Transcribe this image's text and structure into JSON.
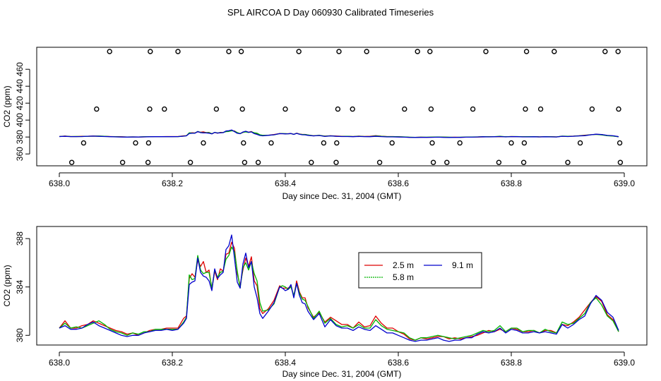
{
  "title": "SPL AIRCOA D  Day 060930  Calibrated Timeseries",
  "colors": {
    "s25": "#dd0000",
    "s58": "#00b400",
    "s91": "#0000cc",
    "frame": "#000000"
  },
  "chart_data": [
    {
      "type": "scatter+line",
      "xlabel": "Day since Dec. 31, 2004 (GMT)",
      "ylabel": "CO2 (ppm)",
      "xlim": [
        637.96,
        639.04
      ],
      "ylim": [
        346,
        486
      ],
      "xticks": [
        638.0,
        638.2,
        638.4,
        638.6,
        638.8,
        639.0
      ],
      "xtick_labels": [
        "638.0",
        "638.2",
        "638.4",
        "638.6",
        "638.8",
        "639.0"
      ],
      "yticks": [
        360,
        380,
        400,
        420,
        440,
        460
      ],
      "ytick_labels": [
        "360",
        "380",
        "400",
        "420",
        "440",
        "460"
      ],
      "calibration_points": [
        {
          "x": 638.022,
          "y": 350
        },
        {
          "x": 638.043,
          "y": 373
        },
        {
          "x": 638.066,
          "y": 413
        },
        {
          "x": 638.089,
          "y": 481
        },
        {
          "x": 638.112,
          "y": 350
        },
        {
          "x": 638.135,
          "y": 373
        },
        {
          "x": 638.157,
          "y": 350
        },
        {
          "x": 638.158,
          "y": 373
        },
        {
          "x": 638.16,
          "y": 413
        },
        {
          "x": 638.161,
          "y": 481
        },
        {
          "x": 638.186,
          "y": 413
        },
        {
          "x": 638.21,
          "y": 481
        },
        {
          "x": 638.232,
          "y": 350
        },
        {
          "x": 638.255,
          "y": 373
        },
        {
          "x": 638.278,
          "y": 413
        },
        {
          "x": 638.3,
          "y": 481
        },
        {
          "x": 638.322,
          "y": 481
        },
        {
          "x": 638.324,
          "y": 413
        },
        {
          "x": 638.326,
          "y": 373
        },
        {
          "x": 638.328,
          "y": 350
        },
        {
          "x": 638.352,
          "y": 350
        },
        {
          "x": 638.375,
          "y": 373
        },
        {
          "x": 638.4,
          "y": 413
        },
        {
          "x": 638.424,
          "y": 481
        },
        {
          "x": 638.446,
          "y": 350
        },
        {
          "x": 638.468,
          "y": 373
        },
        {
          "x": 638.49,
          "y": 350
        },
        {
          "x": 638.491,
          "y": 373
        },
        {
          "x": 638.493,
          "y": 413
        },
        {
          "x": 638.495,
          "y": 481
        },
        {
          "x": 638.519,
          "y": 413
        },
        {
          "x": 638.544,
          "y": 481
        },
        {
          "x": 638.567,
          "y": 350
        },
        {
          "x": 638.589,
          "y": 373
        },
        {
          "x": 638.611,
          "y": 413
        },
        {
          "x": 638.634,
          "y": 481
        },
        {
          "x": 638.656,
          "y": 481
        },
        {
          "x": 638.658,
          "y": 413
        },
        {
          "x": 638.66,
          "y": 373
        },
        {
          "x": 638.662,
          "y": 350
        },
        {
          "x": 638.686,
          "y": 350
        },
        {
          "x": 638.709,
          "y": 373
        },
        {
          "x": 638.732,
          "y": 413
        },
        {
          "x": 638.755,
          "y": 481
        },
        {
          "x": 638.778,
          "y": 350
        },
        {
          "x": 638.8,
          "y": 373
        },
        {
          "x": 638.822,
          "y": 350
        },
        {
          "x": 638.823,
          "y": 373
        },
        {
          "x": 638.825,
          "y": 413
        },
        {
          "x": 638.827,
          "y": 481
        },
        {
          "x": 638.852,
          "y": 413
        },
        {
          "x": 638.876,
          "y": 481
        },
        {
          "x": 638.9,
          "y": 350
        },
        {
          "x": 638.922,
          "y": 373
        },
        {
          "x": 638.943,
          "y": 413
        },
        {
          "x": 638.966,
          "y": 481
        },
        {
          "x": 638.989,
          "y": 481
        },
        {
          "x": 638.99,
          "y": 413
        },
        {
          "x": 638.992,
          "y": 373
        },
        {
          "x": 638.993,
          "y": 350
        }
      ]
    },
    {
      "type": "line",
      "xlabel": "Day since Dec. 31, 2004 (GMT)",
      "ylabel": "CO2 (ppm)",
      "xlim": [
        637.96,
        639.04
      ],
      "ylim": [
        379.2,
        389.0
      ],
      "xticks": [
        638.0,
        638.2,
        638.4,
        638.6,
        638.8,
        639.0
      ],
      "xtick_labels": [
        "638.0",
        "638.2",
        "638.4",
        "638.6",
        "638.8",
        "639.0"
      ],
      "yticks": [
        380,
        384,
        388
      ],
      "ytick_labels": [
        "380",
        "384",
        "388"
      ],
      "legend": [
        "2.5 m",
        "9.1 m",
        "5.8 m"
      ],
      "x": [
        638.0,
        638.01,
        638.02,
        638.03,
        638.04,
        638.05,
        638.06,
        638.07,
        638.08,
        638.09,
        638.1,
        638.11,
        638.12,
        638.13,
        638.14,
        638.15,
        638.16,
        638.17,
        638.18,
        638.19,
        638.2,
        638.21,
        638.22,
        638.225,
        638.23,
        638.235,
        638.24,
        638.245,
        638.25,
        638.255,
        638.26,
        638.265,
        638.27,
        638.275,
        638.28,
        638.285,
        638.29,
        638.295,
        638.3,
        638.305,
        638.31,
        638.315,
        638.32,
        638.325,
        638.33,
        638.335,
        638.34,
        638.345,
        638.35,
        638.355,
        638.36,
        638.37,
        638.38,
        638.39,
        638.395,
        638.4,
        638.405,
        638.41,
        638.415,
        638.42,
        638.425,
        638.43,
        638.435,
        638.44,
        638.45,
        638.46,
        638.47,
        638.48,
        638.49,
        638.5,
        638.51,
        638.52,
        638.53,
        638.54,
        638.55,
        638.56,
        638.57,
        638.58,
        638.59,
        638.6,
        638.61,
        638.62,
        638.63,
        638.64,
        638.65,
        638.66,
        638.67,
        638.68,
        638.69,
        638.7,
        638.71,
        638.72,
        638.73,
        638.74,
        638.75,
        638.76,
        638.77,
        638.78,
        638.79,
        638.8,
        638.81,
        638.82,
        638.83,
        638.84,
        638.85,
        638.86,
        638.87,
        638.88,
        638.89,
        638.9,
        638.91,
        638.92,
        638.93,
        638.94,
        638.95,
        638.96,
        638.97,
        638.98,
        638.99
      ],
      "series": [
        {
          "name": "2.5 m",
          "values": [
            380.6,
            381.2,
            380.6,
            380.6,
            380.8,
            380.9,
            381.2,
            381.0,
            380.8,
            380.6,
            380.4,
            380.3,
            380.1,
            380.2,
            380.0,
            380.2,
            380.4,
            380.5,
            380.5,
            380.6,
            380.6,
            380.6,
            381.4,
            381.6,
            384.7,
            385.1,
            384.8,
            386.2,
            385.7,
            386.1,
            385.2,
            385.4,
            383.8,
            385.3,
            384.6,
            385.5,
            385.3,
            386.7,
            386.8,
            387.7,
            387.2,
            385.1,
            384.1,
            385.4,
            386.4,
            385.7,
            386.5,
            384.5,
            384.1,
            382.2,
            381.8,
            382.2,
            382.9,
            384.1,
            383.9,
            383.9,
            383.9,
            384.1,
            383.2,
            384.5,
            383.6,
            383.1,
            383.1,
            382.3,
            381.5,
            381.9,
            381.1,
            381.5,
            381.2,
            380.9,
            380.9,
            380.6,
            381.1,
            380.7,
            380.8,
            381.6,
            381.0,
            380.6,
            380.6,
            380.3,
            380.1,
            379.7,
            379.6,
            379.8,
            379.7,
            379.8,
            379.9,
            379.9,
            379.7,
            379.8,
            379.7,
            379.8,
            379.9,
            380.0,
            380.2,
            380.4,
            380.3,
            380.5,
            380.3,
            380.6,
            380.5,
            380.3,
            380.3,
            380.4,
            380.2,
            380.4,
            380.4,
            380.2,
            380.9,
            380.8,
            381.1,
            381.5,
            382.1,
            382.7,
            383.2,
            382.8,
            381.7,
            381.3,
            380.3
          ]
        },
        {
          "name": "5.8 m",
          "values": [
            380.6,
            381.0,
            380.6,
            380.7,
            380.6,
            380.8,
            381.0,
            381.2,
            380.9,
            380.5,
            380.3,
            380.2,
            380.0,
            380.2,
            380.1,
            380.3,
            380.3,
            380.5,
            380.5,
            380.5,
            380.5,
            380.5,
            381.1,
            381.5,
            385.0,
            384.6,
            384.7,
            386.6,
            385.4,
            385.1,
            385.2,
            385.2,
            383.9,
            385.4,
            384.8,
            385.2,
            385.3,
            386.3,
            386.6,
            387.3,
            386.9,
            385.3,
            383.9,
            385.6,
            386.0,
            385.4,
            386.1,
            385.1,
            384.5,
            382.7,
            382.0,
            382.1,
            382.6,
            384.0,
            384.1,
            384.0,
            383.8,
            384.0,
            383.3,
            384.3,
            383.5,
            383.0,
            382.9,
            382.4,
            381.4,
            382.0,
            381.0,
            381.4,
            380.9,
            380.7,
            380.8,
            380.6,
            380.9,
            380.6,
            380.6,
            381.3,
            380.8,
            380.5,
            380.4,
            380.3,
            380.2,
            379.8,
            379.6,
            379.8,
            379.8,
            379.9,
            380.0,
            379.9,
            379.8,
            379.7,
            379.8,
            379.9,
            380.0,
            380.2,
            380.4,
            380.3,
            380.4,
            380.8,
            380.3,
            380.6,
            380.6,
            380.3,
            380.4,
            380.4,
            380.2,
            380.5,
            380.3,
            380.2,
            381.1,
            380.9,
            381.0,
            381.4,
            381.8,
            382.7,
            383.1,
            382.5,
            381.6,
            381.2,
            380.3
          ]
        },
        {
          "name": "9.1 m",
          "values": [
            380.6,
            380.8,
            380.5,
            380.5,
            380.6,
            380.9,
            381.1,
            380.8,
            380.6,
            380.4,
            380.2,
            380.0,
            379.9,
            380.0,
            380.0,
            380.2,
            380.3,
            380.4,
            380.4,
            380.5,
            380.4,
            380.5,
            381.0,
            381.4,
            384.2,
            384.4,
            384.5,
            386.4,
            385.2,
            384.9,
            384.8,
            384.5,
            383.7,
            385.5,
            384.7,
            385.0,
            385.2,
            387.1,
            387.4,
            388.3,
            386.4,
            384.4,
            383.9,
            385.9,
            386.8,
            385.6,
            386.1,
            384.0,
            383.1,
            381.8,
            381.4,
            382.0,
            382.7,
            384.0,
            383.9,
            383.7,
            383.8,
            384.2,
            383.1,
            384.3,
            383.3,
            382.7,
            382.6,
            382.0,
            381.3,
            381.8,
            380.7,
            381.3,
            380.8,
            380.6,
            380.6,
            380.4,
            380.7,
            380.5,
            380.4,
            380.8,
            380.5,
            380.2,
            380.2,
            380.0,
            379.8,
            379.6,
            379.5,
            379.6,
            379.6,
            379.7,
            379.8,
            379.6,
            379.5,
            379.6,
            379.6,
            379.8,
            379.8,
            380.1,
            380.3,
            380.2,
            380.3,
            380.6,
            380.2,
            380.5,
            380.4,
            380.2,
            380.2,
            380.3,
            380.2,
            380.3,
            380.2,
            380.1,
            380.9,
            380.6,
            380.9,
            381.3,
            381.6,
            382.6,
            383.3,
            382.9,
            381.9,
            381.5,
            380.4
          ]
        }
      ]
    }
  ]
}
